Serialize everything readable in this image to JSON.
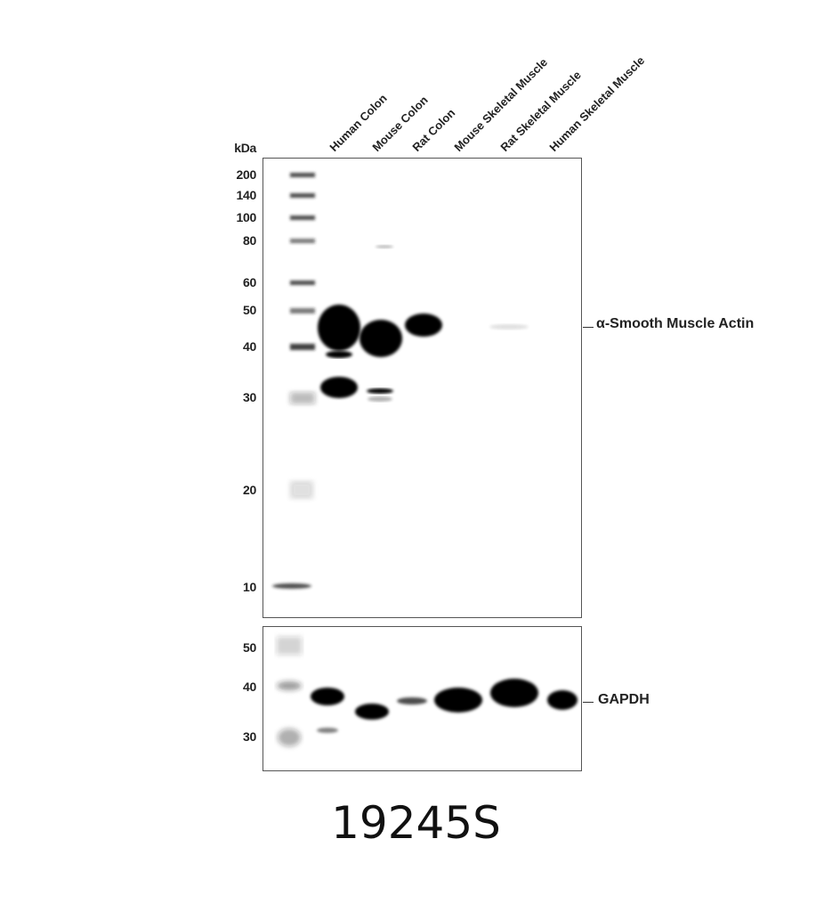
{
  "unit_label": "kDa",
  "lanes": [
    "Human Colon",
    "Mouse Colon",
    "Rat Colon",
    "Mouse Skeletal Muscle",
    "Rat Skeletal Muscle",
    "Human Skeletal Muscle"
  ],
  "upper_markers": [
    "200",
    "140",
    "100",
    "80",
    "60",
    "50",
    "40",
    "30",
    "20",
    "10"
  ],
  "lower_markers": [
    "50",
    "40",
    "30"
  ],
  "upper_target": "α-Smooth Muscle Actin",
  "lower_target": "GAPDH",
  "product_code": "19245S"
}
